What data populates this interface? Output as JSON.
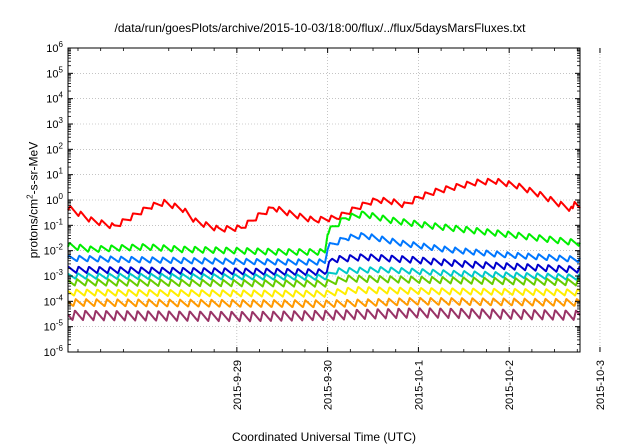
{
  "chart_data": {
    "type": "line",
    "title": "/data/run/goesPlots/archive/2015-10-03/18:00/flux/../flux/5daysMarsFluxes.txt",
    "xlabel": "Coordinated Universal Time (UTC)",
    "ylabel": "protons/cm2-s-sr-MeV",
    "ylabel_parts": [
      "protons/cm",
      "2",
      "-s-sr-MeV"
    ],
    "yscale": "log",
    "ylim_exp": [
      -6,
      6
    ],
    "ytick_labels": [
      {
        "base": "10",
        "exp": "-6"
      },
      {
        "base": "10",
        "exp": "-5"
      },
      {
        "base": "10",
        "exp": "-4"
      },
      {
        "base": "10",
        "exp": "-3"
      },
      {
        "base": "10",
        "exp": "-2"
      },
      {
        "base": "10",
        "exp": "-1"
      },
      {
        "base": "10",
        "exp": "0"
      },
      {
        "base": "10",
        "exp": "1"
      },
      {
        "base": "10",
        "exp": "2"
      },
      {
        "base": "10",
        "exp": "3"
      },
      {
        "base": "10",
        "exp": "4"
      },
      {
        "base": "10",
        "exp": "5"
      },
      {
        "base": "10",
        "exp": "6"
      }
    ],
    "xlim_days": [
      -1.86,
      3.78
    ],
    "x_origin": "2015-09-29",
    "xtick_labels": [
      "2015-9-29",
      "2015-9-30",
      "2015-10-1",
      "2015-10-2",
      "2015-10-3"
    ],
    "grid": true,
    "legend": "none",
    "series": [
      {
        "color": "#ff0000",
        "base": [
          [
            -1.86,
            -0.3
          ],
          [
            -1.6,
            -0.8
          ],
          [
            -1.35,
            -1.05
          ],
          [
            -1.1,
            -0.55
          ],
          [
            -0.95,
            -0.25
          ],
          [
            -0.8,
            -0.1
          ],
          [
            -0.6,
            -0.35
          ],
          [
            -0.45,
            -0.85
          ],
          [
            -0.2,
            -1.15
          ],
          [
            0.05,
            -1.1
          ],
          [
            0.25,
            -0.6
          ],
          [
            0.4,
            -0.3
          ],
          [
            0.6,
            -0.55
          ],
          [
            0.85,
            -0.8
          ],
          [
            1.1,
            -0.7
          ],
          [
            1.3,
            -0.35
          ],
          [
            1.45,
            -0.1
          ],
          [
            1.55,
            0.0
          ],
          [
            1.7,
            -0.05
          ],
          [
            1.85,
            -0.2
          ],
          [
            2.0,
            0.1
          ],
          [
            2.2,
            0.35
          ],
          [
            2.45,
            0.55
          ],
          [
            2.65,
            0.7
          ],
          [
            2.85,
            0.75
          ],
          [
            3.1,
            0.55
          ],
          [
            3.35,
            0.2
          ],
          [
            3.55,
            -0.15
          ],
          [
            3.65,
            -0.3
          ],
          [
            3.7,
            -0.4
          ],
          [
            3.72,
            -0.1
          ],
          [
            3.78,
            -0.2
          ]
        ],
        "osc_amp": 0.22,
        "osc_period": 0.115
      },
      {
        "color": "#00ee00",
        "base": [
          [
            -1.86,
            -1.8
          ],
          [
            -1.6,
            -1.95
          ],
          [
            -1.35,
            -1.9
          ],
          [
            -1.0,
            -1.85
          ],
          [
            -0.6,
            -1.95
          ],
          [
            0.0,
            -2.0
          ],
          [
            0.5,
            -2.05
          ],
          [
            0.97,
            -2.05
          ],
          [
            1.0,
            -1.25
          ],
          [
            1.2,
            -0.7
          ],
          [
            1.4,
            -0.55
          ],
          [
            1.7,
            -0.8
          ],
          [
            2.1,
            -1.0
          ],
          [
            2.6,
            -1.2
          ],
          [
            3.1,
            -1.4
          ],
          [
            3.78,
            -1.7
          ]
        ],
        "osc_amp": 0.24,
        "osc_period": 0.115
      },
      {
        "color": "#0077ff",
        "base": [
          [
            -1.86,
            -2.3
          ],
          [
            -1.2,
            -2.35
          ],
          [
            -0.5,
            -2.4
          ],
          [
            0.5,
            -2.45
          ],
          [
            0.97,
            -2.45
          ],
          [
            1.0,
            -1.85
          ],
          [
            1.2,
            -1.5
          ],
          [
            1.4,
            -1.4
          ],
          [
            1.8,
            -1.7
          ],
          [
            2.3,
            -1.95
          ],
          [
            2.9,
            -2.15
          ],
          [
            3.78,
            -2.35
          ]
        ],
        "osc_amp": 0.22,
        "osc_period": 0.115
      },
      {
        "color": "#0000cc",
        "base": [
          [
            -1.86,
            -2.75
          ],
          [
            -0.5,
            -2.8
          ],
          [
            0.97,
            -2.85
          ],
          [
            1.05,
            -2.35
          ],
          [
            1.4,
            -2.25
          ],
          [
            1.9,
            -2.35
          ],
          [
            2.6,
            -2.55
          ],
          [
            3.78,
            -2.75
          ]
        ],
        "osc_amp": 0.25,
        "osc_period": 0.115
      },
      {
        "color": "#00c8c8",
        "base": [
          [
            -1.86,
            -3.0
          ],
          [
            0.97,
            -3.05
          ],
          [
            1.1,
            -2.8
          ],
          [
            1.6,
            -2.75
          ],
          [
            2.4,
            -2.9
          ],
          [
            3.78,
            -3.05
          ]
        ],
        "osc_amp": 0.22,
        "osc_period": 0.115
      },
      {
        "color": "#66cc00",
        "base": [
          [
            -1.86,
            -3.25
          ],
          [
            0.97,
            -3.3
          ],
          [
            1.2,
            -3.1
          ],
          [
            2.0,
            -3.15
          ],
          [
            3.78,
            -3.25
          ]
        ],
        "osc_amp": 0.25,
        "osc_period": 0.115
      },
      {
        "color": "#ffee00",
        "base": [
          [
            -1.86,
            -3.65
          ],
          [
            0.97,
            -3.7
          ],
          [
            1.3,
            -3.55
          ],
          [
            2.2,
            -3.6
          ],
          [
            3.78,
            -3.65
          ]
        ],
        "osc_amp": 0.25,
        "osc_period": 0.115
      },
      {
        "color": "#ff9900",
        "base": [
          [
            -1.86,
            -4.05
          ],
          [
            1.0,
            -4.1
          ],
          [
            2.0,
            -4.0
          ],
          [
            3.78,
            -4.05
          ]
        ],
        "osc_amp": 0.28,
        "osc_period": 0.115
      },
      {
        "color": "#993366",
        "base": [
          [
            -1.86,
            -4.55
          ],
          [
            0.15,
            -4.6
          ],
          [
            0.95,
            -4.55
          ],
          [
            2.0,
            -4.45
          ],
          [
            3.78,
            -4.55
          ]
        ],
        "osc_amp": 0.38,
        "osc_period": 0.115
      }
    ]
  }
}
